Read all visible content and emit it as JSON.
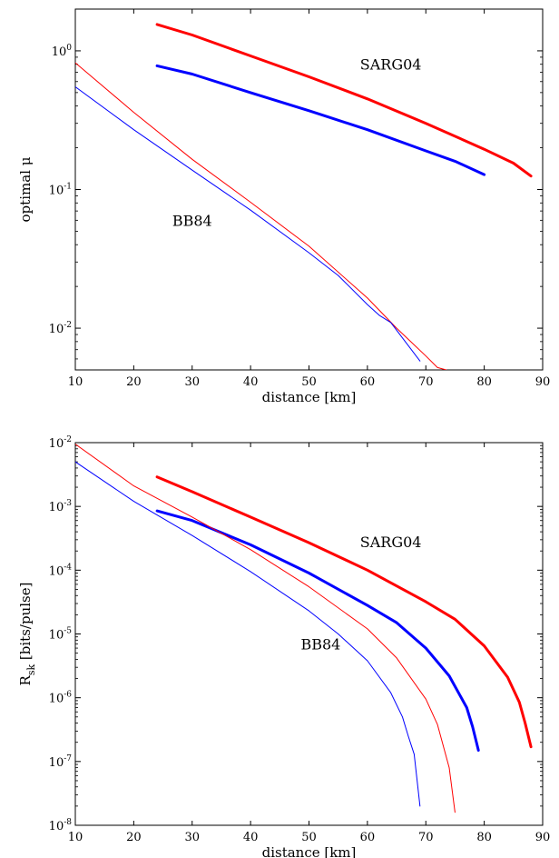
{
  "chart_data": [
    {
      "type": "line",
      "title": "",
      "xlabel": "distance [km]",
      "ylabel": "optimal μ",
      "xlim": [
        10,
        90
      ],
      "ylim": [
        0.005,
        2
      ],
      "yscale": "log",
      "xticks": [
        10,
        20,
        30,
        40,
        50,
        60,
        70,
        80,
        90
      ],
      "xtick_labels": [
        "10",
        "20",
        "30",
        "40",
        "50",
        "60",
        "70",
        "80",
        "90"
      ],
      "yticks": [
        {
          "value": 0.01,
          "base": "10",
          "exp": "-2"
        },
        {
          "value": 0.1,
          "base": "10",
          "exp": "-1"
        },
        {
          "value": 1,
          "base": "10",
          "exp": "0"
        }
      ],
      "grid": false,
      "annotations": [
        {
          "text": "SARG04",
          "x": 64,
          "y": 0.8
        },
        {
          "text": "BB84",
          "x": 30,
          "y": 0.06
        }
      ],
      "series": [
        {
          "color": "#ff0000",
          "width": 3,
          "x": [
            24,
            30,
            40,
            50,
            60,
            70,
            80,
            85,
            88
          ],
          "y": [
            1.55,
            1.3,
            0.92,
            0.65,
            0.45,
            0.3,
            0.195,
            0.155,
            0.125
          ]
        },
        {
          "color": "#0000ff",
          "width": 3,
          "x": [
            24,
            30,
            40,
            50,
            60,
            70,
            75,
            80
          ],
          "y": [
            0.78,
            0.68,
            0.5,
            0.37,
            0.27,
            0.19,
            0.16,
            0.128
          ]
        },
        {
          "color": "#ff0000",
          "width": 1,
          "x": [
            10,
            20,
            30,
            40,
            50,
            60,
            65,
            70,
            72,
            73.5
          ],
          "y": [
            0.82,
            0.36,
            0.165,
            0.081,
            0.039,
            0.0165,
            0.01,
            0.0063,
            0.0052,
            0.005
          ]
        },
        {
          "color": "#0000ff",
          "width": 1,
          "x": [
            10,
            20,
            30,
            40,
            50,
            55,
            60,
            62,
            64,
            66,
            69
          ],
          "y": [
            0.55,
            0.27,
            0.138,
            0.071,
            0.035,
            0.024,
            0.0148,
            0.0124,
            0.011,
            0.0085,
            0.0058
          ]
        }
      ]
    },
    {
      "type": "line",
      "title": "",
      "xlabel": "distance [km]",
      "ylabel": "R",
      "ylabel_sub": "sk",
      "ylabel_rest": " [bits/pulse]",
      "xlim": [
        10,
        90
      ],
      "ylim": [
        1e-08,
        0.01
      ],
      "yscale": "log",
      "xticks": [
        10,
        20,
        30,
        40,
        50,
        60,
        70,
        80,
        90
      ],
      "xtick_labels": [
        "10",
        "20",
        "30",
        "40",
        "50",
        "60",
        "70",
        "80",
        "90"
      ],
      "yticks": [
        {
          "value": 1e-08,
          "base": "10",
          "exp": "-8"
        },
        {
          "value": 1e-07,
          "base": "10",
          "exp": "-7"
        },
        {
          "value": 1e-06,
          "base": "10",
          "exp": "-6"
        },
        {
          "value": 1e-05,
          "base": "10",
          "exp": "-5"
        },
        {
          "value": 0.0001,
          "base": "10",
          "exp": "-4"
        },
        {
          "value": 0.001,
          "base": "10",
          "exp": "-3"
        },
        {
          "value": 0.01,
          "base": "10",
          "exp": "-2"
        }
      ],
      "grid": false,
      "annotations": [
        {
          "text": "SARG04",
          "x": 64,
          "y": 0.00028
        },
        {
          "text": "BB84",
          "x": 52,
          "y": 7e-06
        }
      ],
      "series": [
        {
          "color": "#ff0000",
          "width": 3,
          "x": [
            24,
            30,
            40,
            50,
            60,
            70,
            75,
            80,
            84,
            86,
            87,
            88
          ],
          "y": [
            0.0029,
            0.0017,
            0.00068,
            0.00027,
            0.0001,
            3.2e-05,
            1.7e-05,
            6.5e-06,
            2.1e-06,
            8.5e-07,
            4e-07,
            1.7e-07
          ]
        },
        {
          "color": "#0000ff",
          "width": 3,
          "x": [
            24,
            30,
            40,
            50,
            60,
            65,
            70,
            74,
            77,
            78,
            79
          ],
          "y": [
            0.00085,
            0.0006,
            0.00025,
            9e-05,
            2.8e-05,
            1.5e-05,
            6e-06,
            2.2e-06,
            7e-07,
            3.5e-07,
            1.5e-07
          ]
        },
        {
          "color": "#ff0000",
          "width": 1,
          "x": [
            10,
            20,
            30,
            40,
            50,
            60,
            65,
            70,
            72,
            74,
            75
          ],
          "y": [
            0.0095,
            0.0021,
            0.00068,
            0.00021,
            5.5e-05,
            1.2e-05,
            4.2e-06,
            9.5e-07,
            3.8e-07,
            8e-08,
            1.6e-08
          ]
        },
        {
          "color": "#0000ff",
          "width": 1,
          "x": [
            10,
            20,
            30,
            40,
            50,
            55,
            60,
            64,
            66,
            67,
            68,
            69
          ],
          "y": [
            0.005,
            0.0012,
            0.00035,
            9.5e-05,
            2.3e-05,
            1e-05,
            3.8e-06,
            1.2e-06,
            5e-07,
            2.5e-07,
            1.3e-07,
            2e-08
          ]
        }
      ]
    }
  ]
}
